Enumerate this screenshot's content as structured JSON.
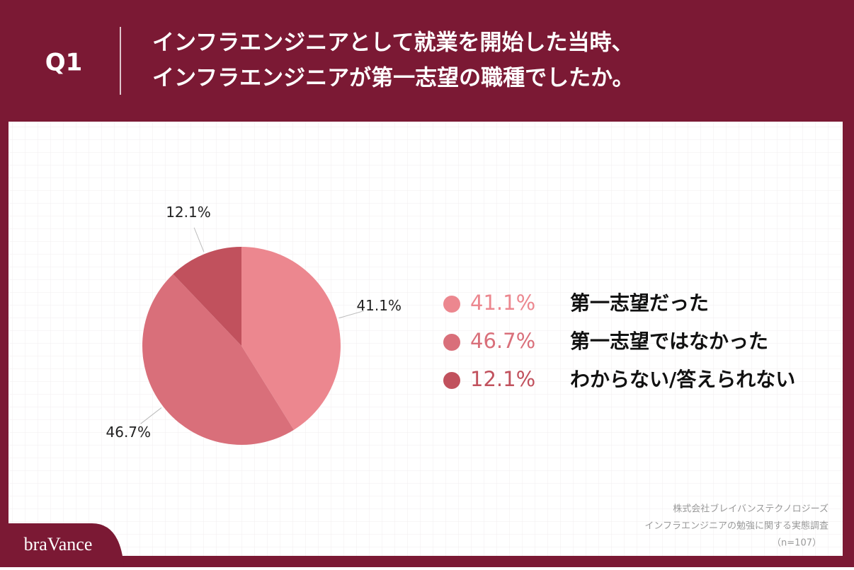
{
  "header": {
    "label": "Q1",
    "title": [
      "インフラエンジニアとして就業を開始した当時、",
      "インフラエンジニアが第一志望の職種でしたか。"
    ]
  },
  "chart_data": {
    "type": "pie",
    "categories": [
      "第一志望だった",
      "第一志望ではなかった",
      "わからない/答えられない"
    ],
    "values": [
      41.1,
      46.7,
      12.1
    ],
    "value_labels": [
      "41.1%",
      "46.7%",
      "12.1%"
    ],
    "colors": [
      "#ec878f",
      "#d96f7a",
      "#c1515d"
    ]
  },
  "source": [
    "株式会社ブレイバンステクノロジーズ",
    "インフラエンジニアの勉強に関する実態調査",
    "（n=107）"
  ],
  "logo": "braVance"
}
